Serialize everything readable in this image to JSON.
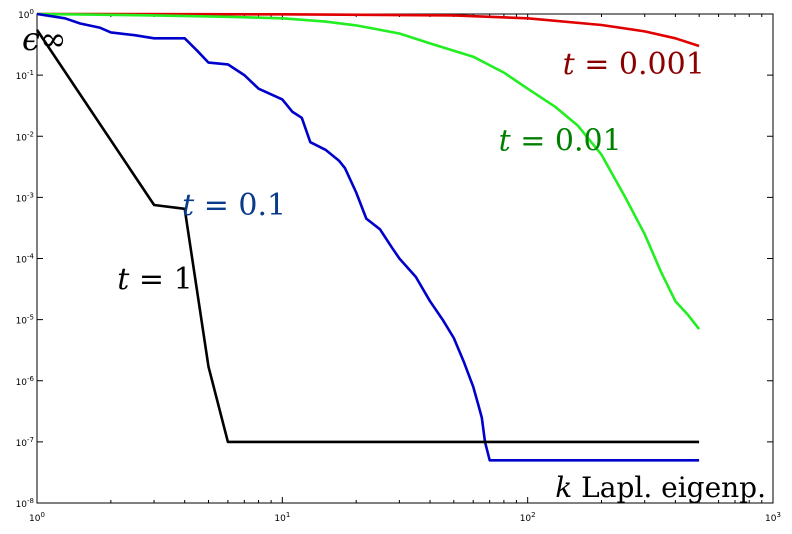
{
  "chart_data": {
    "type": "line",
    "title": "",
    "xlabel_var": "k",
    "xlabel_rest": " Lapl. eigenp.",
    "ylabel": "ϵ∞",
    "x_scale": "log",
    "y_scale": "log",
    "xlim": [
      1,
      1000
    ],
    "ylim": [
      1e-08,
      1
    ],
    "grid": false,
    "x_ticks": [
      {
        "value": 1,
        "base": "10",
        "exp": "0"
      },
      {
        "value": 10,
        "base": "10",
        "exp": "1"
      },
      {
        "value": 100,
        "base": "10",
        "exp": "2"
      },
      {
        "value": 1000,
        "base": "10",
        "exp": "3"
      }
    ],
    "y_ticks": [
      {
        "value": 1,
        "base": "10",
        "exp": "0"
      },
      {
        "value": 0.1,
        "base": "10",
        "exp": "-1"
      },
      {
        "value": 0.01,
        "base": "10",
        "exp": "-2"
      },
      {
        "value": 0.001,
        "base": "10",
        "exp": "-3"
      },
      {
        "value": 0.0001,
        "base": "10",
        "exp": "-4"
      },
      {
        "value": 1e-05,
        "base": "10",
        "exp": "-5"
      },
      {
        "value": 1e-06,
        "base": "10",
        "exp": "-6"
      },
      {
        "value": 1e-07,
        "base": "10",
        "exp": "-7"
      },
      {
        "value": 1e-08,
        "base": "10",
        "exp": "-8"
      }
    ],
    "series": [
      {
        "name": "t = 0.001",
        "label_var": "t",
        "label_rest": " = 0.001",
        "color": "#e00000",
        "label_color": "#8b0000",
        "x": [
          1,
          10,
          50,
          100,
          200,
          300,
          400,
          500
        ],
        "y": [
          1.0,
          0.99,
          0.95,
          0.85,
          0.66,
          0.52,
          0.4,
          0.3
        ]
      },
      {
        "name": "t = 0.01",
        "label_var": "t",
        "label_rest": " = 0.01",
        "color": "#22ee22",
        "label_color": "#008000",
        "x": [
          1,
          3,
          6,
          10,
          15,
          20,
          30,
          40,
          60,
          80,
          100,
          130,
          160,
          200,
          250,
          300,
          350,
          400,
          450,
          500
        ],
        "y": [
          1.0,
          0.95,
          0.9,
          0.85,
          0.75,
          0.65,
          0.48,
          0.33,
          0.2,
          0.11,
          0.06,
          0.03,
          0.015,
          0.005,
          0.001,
          0.00025,
          6e-05,
          2e-05,
          1.2e-05,
          7e-06
        ]
      },
      {
        "name": "t = 0.1",
        "label_var": "t",
        "label_rest": " = 0.1",
        "color": "#0000cc",
        "label_color": "#0a3a8a",
        "x": [
          1,
          1.3,
          1.5,
          1.8,
          2,
          2.5,
          3,
          4,
          4.5,
          5,
          6,
          7,
          8,
          10,
          11,
          12,
          13,
          15,
          17,
          18,
          20,
          22,
          25,
          28,
          30,
          35,
          40,
          45,
          50,
          55,
          60,
          63,
          65,
          67,
          70,
          80,
          100,
          200,
          300,
          500
        ],
        "y": [
          1.0,
          0.85,
          0.7,
          0.6,
          0.5,
          0.45,
          0.4,
          0.4,
          0.25,
          0.16,
          0.15,
          0.1,
          0.06,
          0.04,
          0.025,
          0.02,
          0.008,
          0.006,
          0.004,
          0.003,
          0.0012,
          0.00045,
          0.0003,
          0.00015,
          0.0001,
          5e-05,
          2e-05,
          1e-05,
          5e-06,
          2e-06,
          8e-07,
          4e-07,
          2.5e-07,
          1e-07,
          5e-08,
          5e-08,
          5e-08,
          5e-08,
          5e-08,
          5e-08
        ]
      },
      {
        "name": "t = 1",
        "label_var": "t",
        "label_rest": " = 1",
        "color": "#000000",
        "label_color": "#000000",
        "x": [
          1,
          3,
          4,
          5,
          6,
          8.5,
          100,
          500
        ],
        "y": [
          0.55,
          0.00075,
          0.00065,
          1.7e-06,
          1e-07,
          1e-07,
          1e-07,
          1e-07
        ]
      }
    ]
  }
}
